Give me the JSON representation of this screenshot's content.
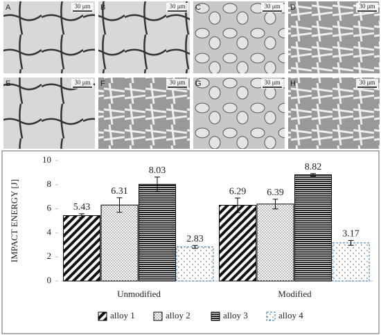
{
  "panels": [
    {
      "label": "A",
      "scale": "30 μm"
    },
    {
      "label": "B",
      "scale": "30 μm"
    },
    {
      "label": "C",
      "scale": "30 μm"
    },
    {
      "label": "D",
      "scale": "30 μm"
    },
    {
      "label": "E",
      "scale": "30 μm"
    },
    {
      "label": "F",
      "scale": "30 μm"
    },
    {
      "label": "G",
      "scale": "30 μm"
    },
    {
      "label": "H",
      "scale": "30 μm"
    }
  ],
  "chart_data": {
    "type": "bar",
    "y_label": "IMPACT ENERGY [J]",
    "categories": [
      "Unmodified",
      "Modified"
    ],
    "ylim": [
      0,
      10
    ],
    "yticks": [
      0,
      2,
      4,
      6,
      8,
      10
    ],
    "series": [
      {
        "name": "alloy 1",
        "color": "#000000",
        "hatch": "diagonal",
        "values": [
          5.43,
          6.29
        ],
        "errors": [
          0.15,
          0.6
        ]
      },
      {
        "name": "alloy 2",
        "color": "#000000",
        "hatch": "dots",
        "values": [
          6.31,
          6.39
        ],
        "errors": [
          0.6,
          0.4
        ]
      },
      {
        "name": "alloy 3",
        "color": "#000000",
        "hatch": "horizontal",
        "values": [
          8.03,
          8.82
        ],
        "errors": [
          0.6,
          0.1
        ]
      },
      {
        "name": "alloy 4",
        "color": "#2e75b6",
        "hatch": "sparse-dots",
        "values": [
          2.83,
          3.17
        ],
        "errors": [
          0.12,
          0.2
        ]
      }
    ],
    "legend": "bottom"
  }
}
